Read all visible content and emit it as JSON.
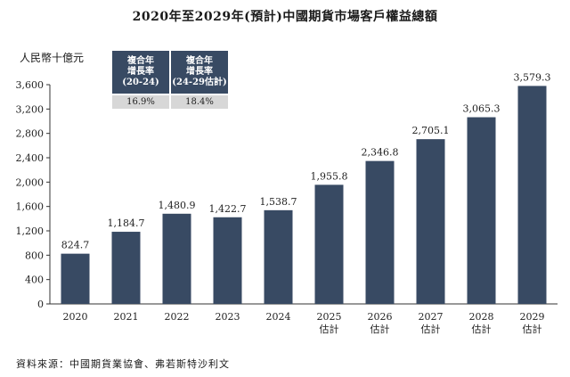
{
  "title": "2020年至2029年(預計)中國期貨市場客戶權益總額",
  "unit_label": "人民幣十億元",
  "source": "資料來源：中國期貨業協會、弗若斯特沙利文",
  "cagr_table": {
    "headers": [
      "複合年\n增長率\n(20-24)",
      "複合年\n增長率\n(24-29估計)"
    ],
    "values": [
      "16.9%",
      "18.4%"
    ]
  },
  "chart_data": {
    "type": "bar",
    "title": "2020年至2029年(預計)中國期貨市場客戶權益總額",
    "ylabel": "人民幣十億元",
    "categories": [
      "2020",
      "2021",
      "2022",
      "2023",
      "2024",
      "2025\n估計",
      "2026\n估計",
      "2027\n估計",
      "2028\n估計",
      "2029\n估計"
    ],
    "values": [
      824.7,
      1184.7,
      1480.9,
      1422.7,
      1538.7,
      1955.8,
      2346.8,
      2705.1,
      3065.3,
      3579.3
    ],
    "value_labels": [
      "824.7",
      "1,184.7",
      "1,480.9",
      "1,422.7",
      "1,538.7",
      "1,955.8",
      "2,346.8",
      "2,705.1",
      "3,065.3",
      "3,579.3"
    ],
    "ylim": [
      0,
      3600
    ],
    "yticks": [
      0,
      400,
      800,
      1200,
      1600,
      2000,
      2400,
      2800,
      3200,
      3600
    ],
    "ytick_labels": [
      "0",
      "400",
      "800",
      "1,200",
      "1,600",
      "2,000",
      "2,400",
      "2,800",
      "3,200",
      "3,600"
    ],
    "bar_color": "#384a63",
    "grid": false
  }
}
